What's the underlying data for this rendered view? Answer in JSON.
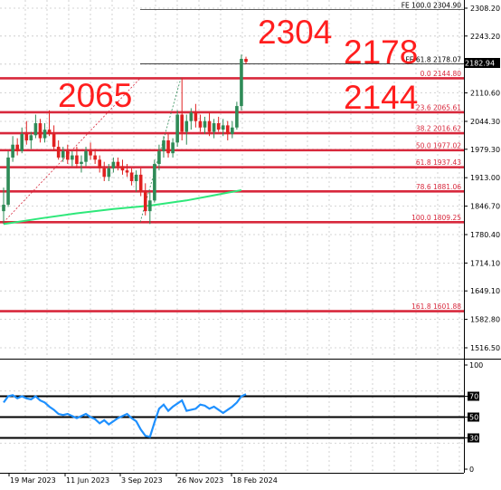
{
  "chart_data": [
    {
      "type": "candlestick",
      "title": "",
      "price_axis": {
        "ticks": [
          "2308.20",
          "2243.20",
          "2177.70",
          "2110.60",
          "2044.30",
          "1979.30",
          "1913.00",
          "1846.70",
          "1780.40",
          "1714.10",
          "1649.10",
          "1582.80",
          "1516.50"
        ],
        "range": [
          1490,
          2316
        ]
      },
      "time_axis": {
        "labels": [
          "19 Mar 2023",
          "11 Jun 2023",
          "3 Sep 2023",
          "26 Nov 2023",
          "18 Feb 2024"
        ]
      },
      "current_price": "2182.94",
      "fib_retracement": [
        {
          "label": "0.0 2144.80",
          "value": 2144.8
        },
        {
          "label": "23.6 2065.61",
          "value": 2065.61
        },
        {
          "label": "38.2 2016.62",
          "value": 2016.62
        },
        {
          "label": "50.0 1977.02",
          "value": 1977.02
        },
        {
          "label": "61.8 1937.43",
          "value": 1937.43
        },
        {
          "label": "78.6 1881.06",
          "value": 1881.06
        },
        {
          "label": "100.0 1809.25",
          "value": 1809.25
        },
        {
          "label": "161.8 1601.88",
          "value": 1601.88
        }
      ],
      "fib_expansion": [
        {
          "label": "FE 100.0 2304.90",
          "value": 2304.9
        },
        {
          "label": "FE 61.8 2178.07",
          "value": 2178.07
        }
      ],
      "annotations": [
        "2304",
        "2178",
        "2065",
        "2144"
      ],
      "moving_average_color": "#2ee87a",
      "level_color": "#d8283c",
      "bull_color": "#2e8b57",
      "bear_color": "#e02020",
      "candles": [
        {
          "o": 1835,
          "h": 1890,
          "l": 1805,
          "c": 1850
        },
        {
          "o": 1850,
          "h": 1975,
          "l": 1845,
          "c": 1960
        },
        {
          "o": 1960,
          "h": 2010,
          "l": 1950,
          "c": 1990
        },
        {
          "o": 1990,
          "h": 2005,
          "l": 1965,
          "c": 1975
        },
        {
          "o": 1975,
          "h": 2030,
          "l": 1970,
          "c": 2015
        },
        {
          "o": 2015,
          "h": 2045,
          "l": 1990,
          "c": 2000
        },
        {
          "o": 2000,
          "h": 2020,
          "l": 1980,
          "c": 2012
        },
        {
          "o": 2012,
          "h": 2060,
          "l": 2005,
          "c": 2040
        },
        {
          "o": 2040,
          "h": 2050,
          "l": 1995,
          "c": 2005
        },
        {
          "o": 2005,
          "h": 2040,
          "l": 1995,
          "c": 2025
        },
        {
          "o": 2025,
          "h": 2070,
          "l": 2010,
          "c": 2015
        },
        {
          "o": 2015,
          "h": 2035,
          "l": 1975,
          "c": 1985
        },
        {
          "o": 1985,
          "h": 2000,
          "l": 1955,
          "c": 1960
        },
        {
          "o": 1960,
          "h": 1985,
          "l": 1950,
          "c": 1975
        },
        {
          "o": 1975,
          "h": 1990,
          "l": 1945,
          "c": 1955
        },
        {
          "o": 1955,
          "h": 1975,
          "l": 1940,
          "c": 1965
        },
        {
          "o": 1965,
          "h": 1985,
          "l": 1935,
          "c": 1945
        },
        {
          "o": 1945,
          "h": 1965,
          "l": 1925,
          "c": 1950
        },
        {
          "o": 1950,
          "h": 1985,
          "l": 1940,
          "c": 1975
        },
        {
          "o": 1975,
          "h": 1995,
          "l": 1955,
          "c": 1965
        },
        {
          "o": 1965,
          "h": 1980,
          "l": 1945,
          "c": 1955
        },
        {
          "o": 1955,
          "h": 1965,
          "l": 1925,
          "c": 1935
        },
        {
          "o": 1935,
          "h": 1950,
          "l": 1905,
          "c": 1915
        },
        {
          "o": 1915,
          "h": 1945,
          "l": 1905,
          "c": 1935
        },
        {
          "o": 1935,
          "h": 1960,
          "l": 1925,
          "c": 1950
        },
        {
          "o": 1950,
          "h": 1960,
          "l": 1930,
          "c": 1940
        },
        {
          "o": 1940,
          "h": 1955,
          "l": 1920,
          "c": 1930
        },
        {
          "o": 1930,
          "h": 1945,
          "l": 1915,
          "c": 1925
        },
        {
          "o": 1925,
          "h": 1935,
          "l": 1895,
          "c": 1905
        },
        {
          "o": 1905,
          "h": 1930,
          "l": 1880,
          "c": 1920
        },
        {
          "o": 1920,
          "h": 1935,
          "l": 1870,
          "c": 1880
        },
        {
          "o": 1880,
          "h": 1900,
          "l": 1825,
          "c": 1835
        },
        {
          "o": 1835,
          "h": 1880,
          "l": 1805,
          "c": 1860
        },
        {
          "o": 1860,
          "h": 1955,
          "l": 1855,
          "c": 1945
        },
        {
          "o": 1945,
          "h": 1990,
          "l": 1930,
          "c": 1975
        },
        {
          "o": 1975,
          "h": 2010,
          "l": 1960,
          "c": 2000
        },
        {
          "o": 2000,
          "h": 2015,
          "l": 1960,
          "c": 1970
        },
        {
          "o": 1970,
          "h": 2005,
          "l": 1960,
          "c": 1995
        },
        {
          "o": 1995,
          "h": 2070,
          "l": 1985,
          "c": 2060
        },
        {
          "o": 2060,
          "h": 2145,
          "l": 2000,
          "c": 2020
        },
        {
          "o": 2020,
          "h": 2060,
          "l": 1990,
          "c": 2045
        },
        {
          "o": 2045,
          "h": 2075,
          "l": 2025,
          "c": 2065
        },
        {
          "o": 2065,
          "h": 2085,
          "l": 2030,
          "c": 2045
        },
        {
          "o": 2045,
          "h": 2060,
          "l": 2020,
          "c": 2030
        },
        {
          "o": 2030,
          "h": 2055,
          "l": 2015,
          "c": 2045
        },
        {
          "o": 2045,
          "h": 2065,
          "l": 2010,
          "c": 2020
        },
        {
          "o": 2020,
          "h": 2050,
          "l": 2005,
          "c": 2040
        },
        {
          "o": 2040,
          "h": 2055,
          "l": 2020,
          "c": 2025
        },
        {
          "o": 2025,
          "h": 2050,
          "l": 2010,
          "c": 2035
        },
        {
          "o": 2035,
          "h": 2045,
          "l": 2000,
          "c": 2015
        },
        {
          "o": 2015,
          "h": 2045,
          "l": 2005,
          "c": 2030
        },
        {
          "o": 2030,
          "h": 2090,
          "l": 2025,
          "c": 2080
        },
        {
          "o": 2080,
          "h": 2200,
          "l": 2070,
          "c": 2190
        },
        {
          "o": 2190,
          "h": 2195,
          "l": 2178,
          "c": 2183
        }
      ],
      "moving_average": [
        {
          "i": 0,
          "v": 1805
        },
        {
          "i": 8,
          "v": 1818
        },
        {
          "i": 16,
          "v": 1830
        },
        {
          "i": 24,
          "v": 1840
        },
        {
          "i": 32,
          "v": 1848
        },
        {
          "i": 40,
          "v": 1860
        },
        {
          "i": 46,
          "v": 1872
        },
        {
          "i": 52,
          "v": 1884
        }
      ]
    },
    {
      "type": "line",
      "title": "",
      "range": [
        0,
        100
      ],
      "ticks": [
        "100",
        "70",
        "50",
        "30",
        "0"
      ],
      "levels": [
        70,
        50,
        30
      ],
      "line_color": "#1e90ff",
      "values": [
        64,
        70,
        71,
        68,
        70,
        68,
        67,
        70,
        66,
        64,
        60,
        57,
        53,
        52,
        53,
        51,
        49,
        51,
        53,
        50,
        48,
        44,
        47,
        43,
        46,
        49,
        51,
        53,
        49,
        46,
        38,
        32,
        31,
        45,
        58,
        62,
        56,
        60,
        63,
        66,
        56,
        57,
        58,
        62,
        61,
        58,
        60,
        57,
        54,
        57,
        60,
        64,
        70,
        72
      ]
    }
  ]
}
